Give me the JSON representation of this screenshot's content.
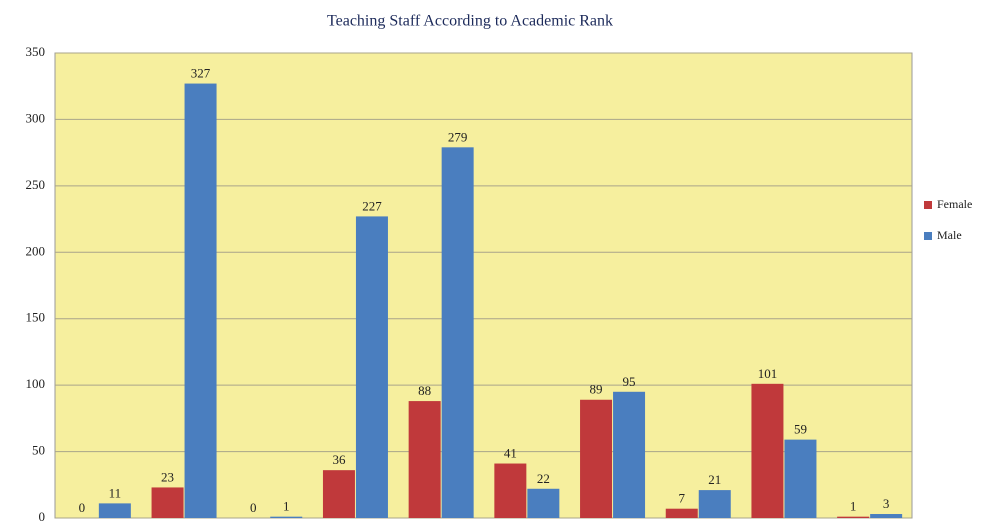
{
  "chart_data": {
    "type": "bar",
    "title": "Teaching Staff According to Academic Rank",
    "categories": [
      null,
      null,
      null,
      null,
      null,
      null,
      null,
      null,
      null,
      null
    ],
    "series": [
      {
        "name": "Female",
        "color": "#c0393b",
        "values": [
          0,
          23,
          0,
          36,
          88,
          41,
          89,
          7,
          101,
          1
        ]
      },
      {
        "name": "Male",
        "color": "#4a7ebf",
        "values": [
          11,
          327,
          1,
          227,
          279,
          22,
          95,
          21,
          59,
          3
        ]
      }
    ],
    "ylim": [
      0,
      350
    ],
    "yticks": [
      0,
      50,
      100,
      150,
      200,
      250,
      300,
      350
    ],
    "grid": true,
    "legend": "right"
  }
}
